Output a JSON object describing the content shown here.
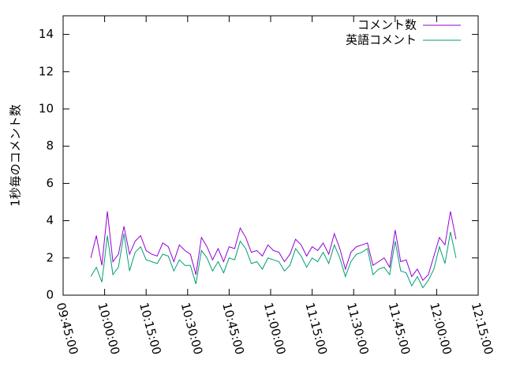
{
  "chart_data": {
    "type": "line",
    "ylabel": "1秒毎のコメント数",
    "x": [
      "09:55:00",
      "09:57:00",
      "09:59:00",
      "10:01:00",
      "10:03:00",
      "10:05:00",
      "10:07:00",
      "10:09:00",
      "10:11:00",
      "10:13:00",
      "10:15:00",
      "10:17:00",
      "10:19:00",
      "10:21:00",
      "10:23:00",
      "10:25:00",
      "10:27:00",
      "10:29:00",
      "10:31:00",
      "10:33:00",
      "10:35:00",
      "10:37:00",
      "10:39:00",
      "10:41:00",
      "10:43:00",
      "10:45:00",
      "10:47:00",
      "10:49:00",
      "10:51:00",
      "10:53:00",
      "10:55:00",
      "10:57:00",
      "10:59:00",
      "11:01:00",
      "11:03:00",
      "11:05:00",
      "11:07:00",
      "11:09:00",
      "11:11:00",
      "11:13:00",
      "11:15:00",
      "11:17:00",
      "11:19:00",
      "11:21:00",
      "11:23:00",
      "11:25:00",
      "11:27:00",
      "11:29:00",
      "11:31:00",
      "11:33:00",
      "11:35:00",
      "11:37:00",
      "11:39:00",
      "11:41:00",
      "11:43:00",
      "11:45:00",
      "11:47:00",
      "11:49:00",
      "11:51:00",
      "11:53:00",
      "11:55:00",
      "11:57:00",
      "11:59:00",
      "12:01:00",
      "12:03:00",
      "12:05:00",
      "12:07:00"
    ],
    "series": [
      {
        "name": "コメント数",
        "color": "#9400d3",
        "values": [
          2.0,
          3.2,
          1.6,
          4.5,
          1.8,
          2.2,
          3.7,
          2.2,
          2.9,
          3.2,
          2.4,
          2.2,
          2.1,
          2.8,
          2.6,
          1.8,
          2.7,
          2.4,
          2.2,
          1.1,
          3.1,
          2.6,
          1.9,
          2.5,
          1.8,
          2.6,
          2.5,
          3.6,
          3.1,
          2.3,
          2.4,
          2.1,
          2.7,
          2.4,
          2.3,
          1.8,
          2.2,
          3.0,
          2.7,
          2.1,
          2.6,
          2.4,
          2.8,
          2.2,
          3.3,
          2.5,
          1.4,
          2.3,
          2.6,
          2.7,
          2.8,
          1.6,
          1.8,
          2.0,
          1.5,
          3.5,
          1.8,
          1.9,
          1.0,
          1.4,
          0.8,
          1.1,
          2.1,
          3.1,
          2.7,
          4.5,
          3.0
        ]
      },
      {
        "name": "英語コメント",
        "color": "#009e73",
        "values": [
          1.0,
          1.5,
          0.7,
          3.2,
          1.1,
          1.5,
          3.3,
          1.3,
          2.3,
          2.6,
          1.9,
          1.8,
          1.7,
          2.2,
          2.1,
          1.3,
          1.9,
          1.6,
          1.6,
          0.6,
          2.4,
          2.0,
          1.3,
          1.8,
          1.2,
          2.0,
          1.9,
          2.9,
          2.5,
          1.7,
          1.8,
          1.4,
          2.0,
          1.9,
          1.8,
          1.3,
          1.6,
          2.5,
          2.1,
          1.5,
          2.0,
          1.8,
          2.3,
          1.7,
          2.7,
          2.0,
          1.0,
          1.8,
          2.2,
          2.3,
          2.5,
          1.1,
          1.4,
          1.5,
          1.1,
          2.9,
          1.3,
          1.2,
          0.5,
          1.0,
          0.4,
          0.8,
          1.4,
          2.6,
          1.7,
          3.4,
          2.0
        ]
      }
    ],
    "xlim": [
      "09:45:00",
      "12:15:00"
    ],
    "xticks": [
      "09:45:00",
      "10:00:00",
      "10:15:00",
      "10:30:00",
      "10:45:00",
      "11:00:00",
      "11:15:00",
      "11:30:00",
      "11:45:00",
      "12:00:00",
      "12:15:00"
    ],
    "ylim": [
      0,
      15
    ],
    "yticks": [
      0,
      2,
      4,
      6,
      8,
      10,
      12,
      14
    ],
    "legend": "top-right"
  }
}
